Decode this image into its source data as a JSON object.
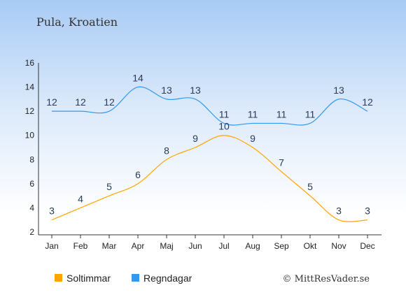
{
  "title": "Pula, Kroatien",
  "credit": "© MittResVader.se",
  "chart_data": {
    "type": "line",
    "categories": [
      "Jan",
      "Feb",
      "Mar",
      "Apr",
      "Maj",
      "Jun",
      "Jul",
      "Aug",
      "Sep",
      "Okt",
      "Nov",
      "Dec"
    ],
    "series": [
      {
        "name": "Soltimmar",
        "color": "#ffa500",
        "values": [
          3,
          4,
          5,
          6,
          8,
          9,
          10,
          9,
          7,
          5,
          3,
          3
        ]
      },
      {
        "name": "Regndagar",
        "color": "#3399ee",
        "values": [
          12,
          12,
          12,
          14,
          13,
          13,
          11,
          11,
          11,
          11,
          13,
          12
        ]
      }
    ],
    "yticks": [
      2,
      4,
      6,
      8,
      10,
      12,
      14,
      16
    ],
    "ylim": [
      2,
      16
    ],
    "legend_position": "bottom-left",
    "grid": false
  }
}
